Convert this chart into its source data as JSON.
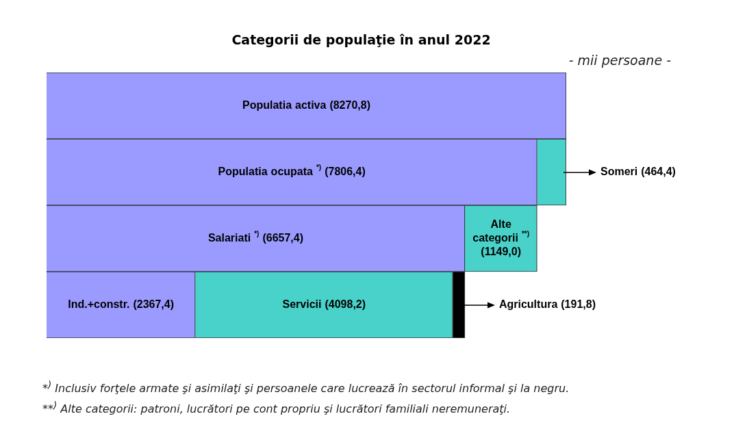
{
  "chart_data": {
    "type": "bar",
    "orientation": "horizontal",
    "stacked": true,
    "title": "Categorii de populaţie în anul 2022",
    "subtitle": "- mii persoane -",
    "categories": [
      null,
      null,
      null,
      null
    ],
    "series": [
      {
        "color": "#9a9aff",
        "values": [
          8270.8,
          null,
          null,
          null
        ],
        "value_labels": [
          "Populatia activa (8270,8)",
          null,
          null,
          null
        ]
      },
      {
        "color": "#9a9aff",
        "values": [
          null,
          7806.4,
          null,
          null
        ],
        "value_labels": [
          null,
          "Populatia ocupata $^{*)}$ (7806,4)",
          null,
          null
        ]
      },
      {
        "color": "#9a9aff",
        "values": [
          null,
          null,
          6657.4,
          null
        ],
        "value_labels": [
          null,
          null,
          "Salariati $^{*)}$ (6657,4)",
          null
        ]
      },
      {
        "color": "#9a9aff",
        "values": [
          null,
          null,
          null,
          2367.4
        ],
        "value_labels": [
          null,
          null,
          null,
          "Ind.+constr. (2367,4)"
        ]
      },
      {
        "color": "#48d2ca",
        "values": [
          null,
          464.4,
          null,
          null
        ],
        "value_labels": [
          null,
          "Someri (464,4)",
          null,
          null
        ]
      },
      {
        "color": "#48d2ca",
        "values": [
          null,
          null,
          1149.0,
          null
        ],
        "value_labels": [
          null,
          null,
          "Alte categorii $^{**)}$ (1149,0)",
          null
        ]
      },
      {
        "color": "#48d2ca",
        "values": [
          null,
          null,
          null,
          4098.2
        ],
        "value_labels": [
          null,
          null,
          null,
          "Servicii (4098,2)"
        ]
      },
      {
        "color": "#000000",
        "values": [
          null,
          null,
          null,
          191.8
        ],
        "value_labels": [
          null,
          null,
          null,
          "Agricultura (191,8)"
        ]
      }
    ],
    "legend": false,
    "grid": false,
    "tick_labels": false,
    "annotations": [
      "*$^{)}$ Inclusiv forţele armate şi asimilaţi şi persoanele care lucrează în sectorul informal şi la negru.",
      "**$^{)}$  Alte categorii: patroni, lucrători pe cont propriu şi lucrători familiali neremuneraţi."
    ]
  }
}
